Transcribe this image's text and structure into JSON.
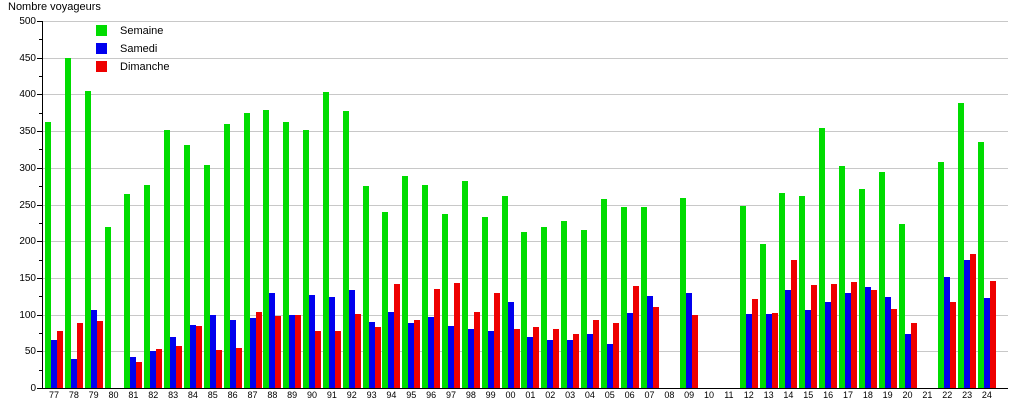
{
  "title": "Nombre voyageurs",
  "colors": {
    "semaine": "#00DC00",
    "samedi": "#0000EE",
    "dimanche": "#EE0000",
    "gridline": "#C8C8C8",
    "axis": "#000000",
    "background": "#FFFFFF"
  },
  "y_axis": {
    "min": 0,
    "max": 500,
    "major_step": 50,
    "minor_step": 25,
    "tick_labels": [
      "0",
      "50",
      "100",
      "150",
      "200",
      "250",
      "300",
      "350",
      "400",
      "450",
      "500"
    ]
  },
  "chart_data": {
    "type": "bar",
    "title": "Nombre voyageurs",
    "xlabel": "",
    "ylabel": "Nombre voyageurs",
    "ylim": [
      0,
      500
    ],
    "grid": true,
    "legend_position": "top-left",
    "categories": [
      "77",
      "78",
      "79",
      "80",
      "81",
      "82",
      "83",
      "84",
      "85",
      "86",
      "87",
      "88",
      "89",
      "90",
      "91",
      "92",
      "93",
      "94",
      "95",
      "96",
      "97",
      "98",
      "99",
      "00",
      "01",
      "02",
      "03",
      "04",
      "05",
      "06",
      "07",
      "08",
      "09",
      "10",
      "11",
      "12",
      "13",
      "14",
      "15",
      "16",
      "17",
      "18",
      "19",
      "20",
      "21",
      "22",
      "23",
      "24"
    ],
    "series": [
      {
        "name": "Semaine",
        "color": "#00DC00",
        "values": [
          362,
          450,
          404,
          219,
          264,
          277,
          351,
          331,
          304,
          359,
          374,
          379,
          362,
          351,
          403,
          378,
          275,
          240,
          289,
          276,
          237,
          282,
          233,
          261,
          213,
          219,
          228,
          215,
          257,
          247,
          247,
          null,
          259,
          null,
          null,
          248,
          196,
          266,
          262,
          354,
          302,
          271,
          294,
          223,
          null,
          308,
          388,
          335
        ]
      },
      {
        "name": "Samedi",
        "color": "#0000EE",
        "values": [
          66,
          40,
          106,
          null,
          42,
          50,
          69,
          86,
          100,
          93,
          95,
          129,
          100,
          127,
          124,
          134,
          90,
          104,
          89,
          97,
          85,
          81,
          77,
          117,
          70,
          66,
          66,
          73,
          60,
          102,
          126,
          null,
          130,
          null,
          null,
          101,
          101,
          133,
          106,
          117,
          129,
          137,
          124,
          74,
          null,
          151,
          174,
          122
        ]
      },
      {
        "name": "Dimanche",
        "color": "#EE0000",
        "values": [
          77,
          89,
          91,
          null,
          36,
          53,
          57,
          84,
          52,
          54,
          103,
          98,
          99,
          77,
          78,
          101,
          83,
          142,
          93,
          135,
          143,
          103,
          130,
          81,
          83,
          81,
          73,
          93,
          89,
          139,
          111,
          null,
          99,
          null,
          null,
          121,
          102,
          175,
          140,
          142,
          144,
          133,
          108,
          89,
          null,
          117,
          182,
          146
        ]
      }
    ]
  }
}
